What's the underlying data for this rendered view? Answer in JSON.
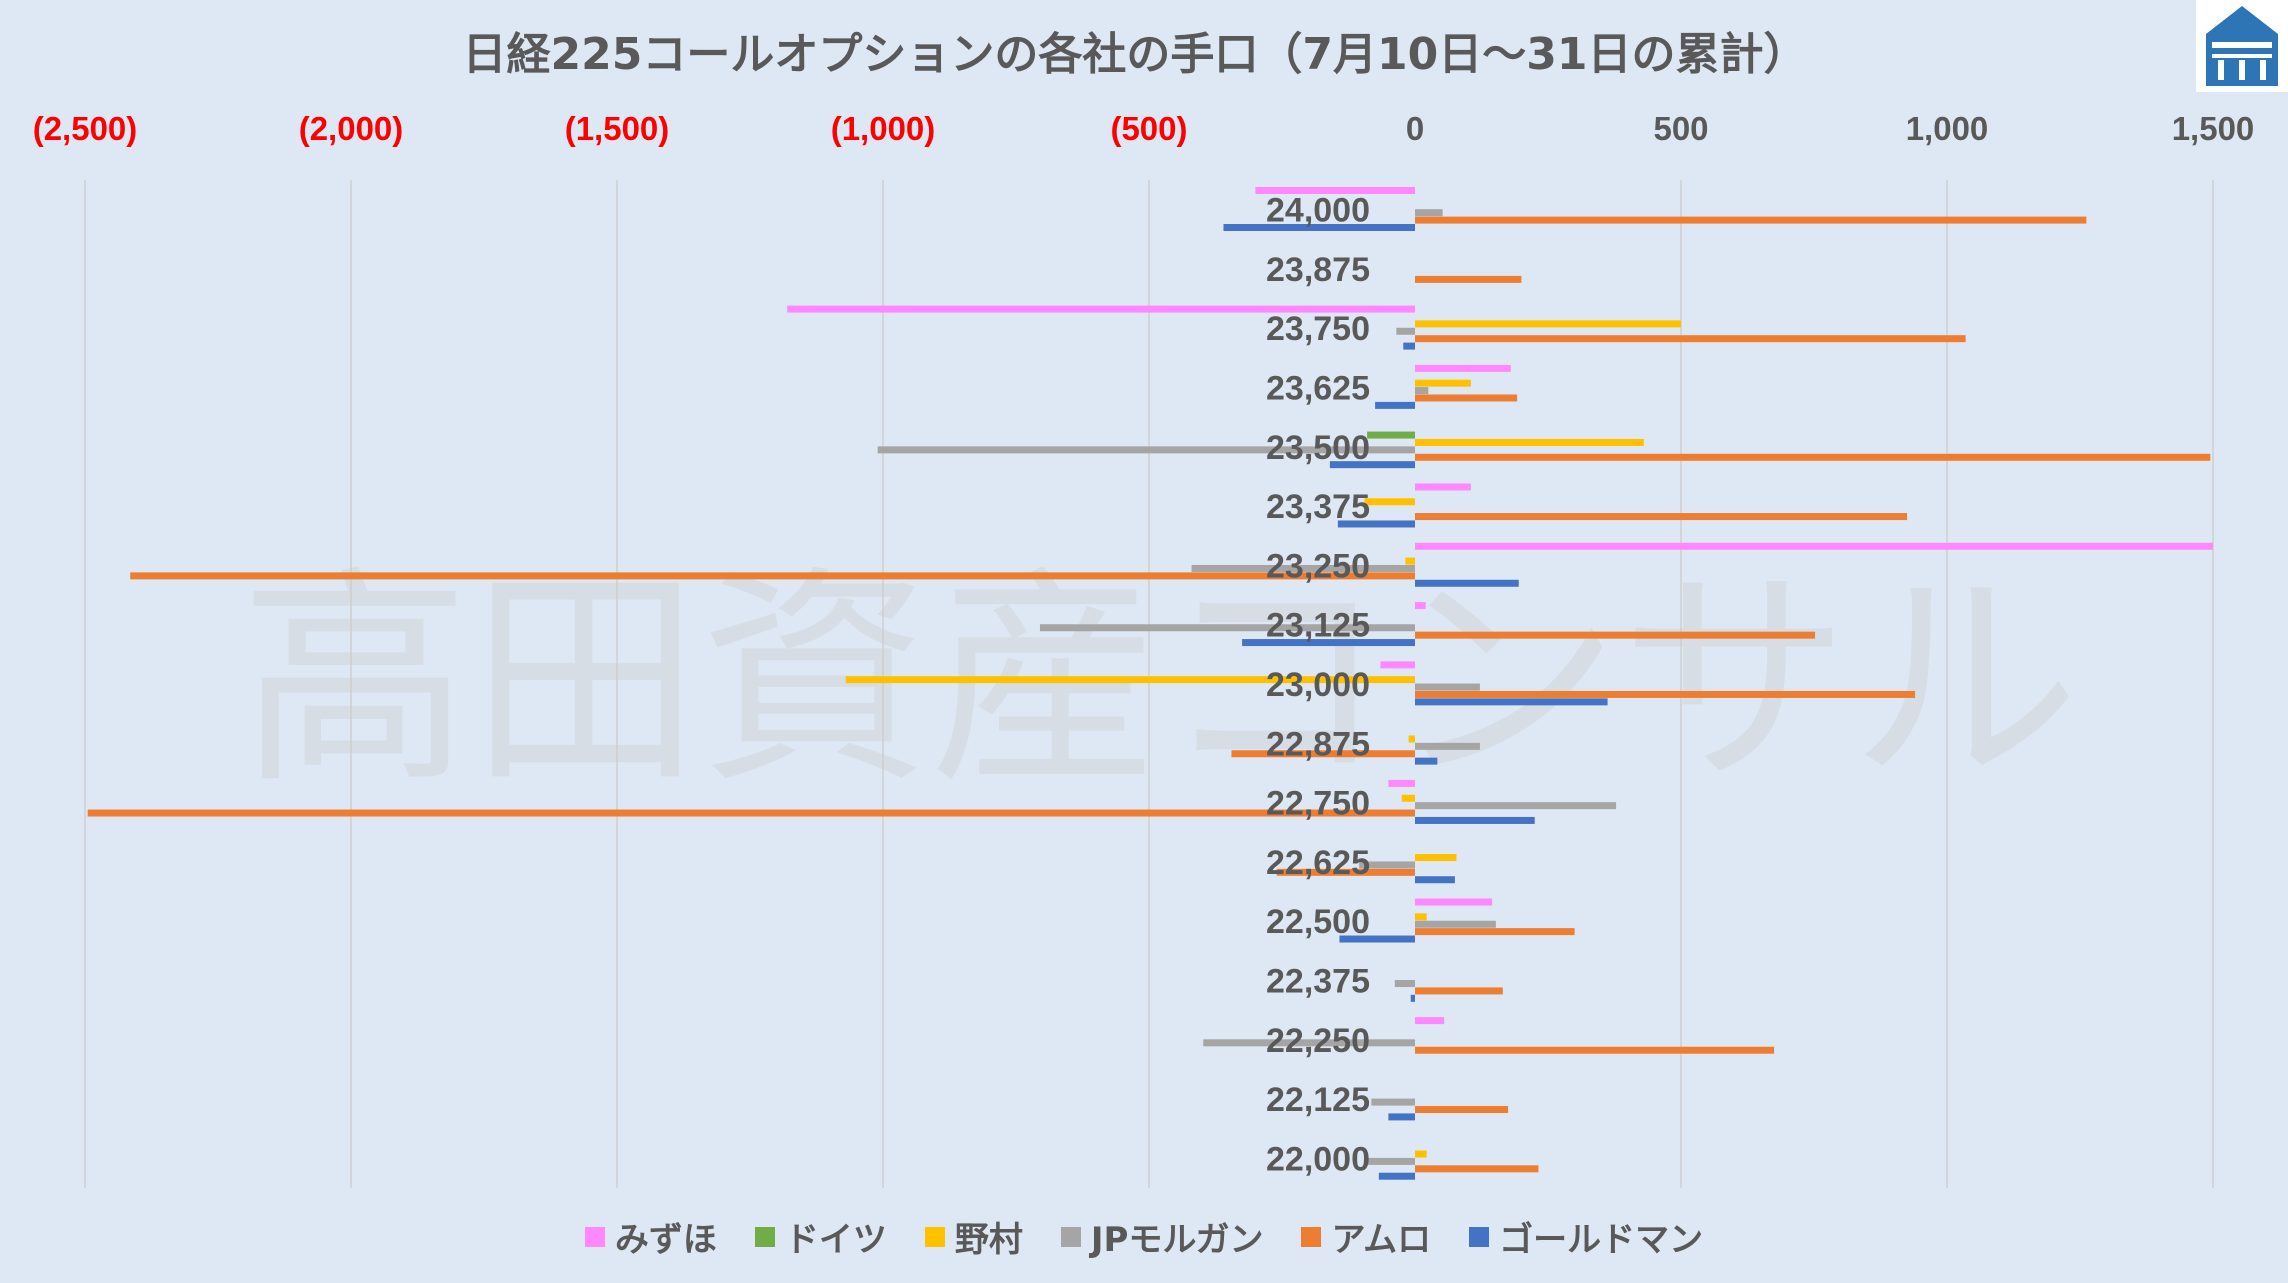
{
  "title": "日経225コールオプションの各社の手口（7月10日～31日の累計）",
  "watermark": "高田資産コンサル",
  "logo_icon": "company-logo-icon",
  "chart_data": {
    "type": "bar",
    "orientation": "horizontal",
    "title": "日経225コールオプションの各社の手口（7月10日～31日の累計）",
    "xlim": [
      -2500,
      1500
    ],
    "x_ticks": [
      -2500,
      -2000,
      -1500,
      -1000,
      -500,
      0,
      500,
      1000,
      1500
    ],
    "x_tick_labels": [
      "(2,500)",
      "(2,000)",
      "(1,500)",
      "(1,000)",
      "(500)",
      "0",
      "500",
      "1,000",
      "1,500"
    ],
    "negative_tick_color": "#ff0000",
    "positive_tick_color": "#595959",
    "categories": [
      "24,000",
      "23,875",
      "23,750",
      "23,625",
      "23,500",
      "23,375",
      "23,250",
      "23,125",
      "23,000",
      "22,875",
      "22,750",
      "22,625",
      "22,500",
      "22,375",
      "22,250",
      "22,125",
      "22,000"
    ],
    "series": [
      {
        "name": "みずほ",
        "color": "#ff88ff",
        "values": [
          -300,
          0,
          -1180,
          180,
          0,
          105,
          1500,
          20,
          -65,
          0,
          -50,
          0,
          145,
          0,
          55,
          0,
          0
        ]
      },
      {
        "name": "ドイツ",
        "color": "#70ad47",
        "values": [
          0,
          0,
          0,
          0,
          -90,
          0,
          0,
          0,
          0,
          0,
          0,
          0,
          0,
          0,
          0,
          0,
          0
        ]
      },
      {
        "name": "野村",
        "color": "#ffc000",
        "values": [
          0,
          0,
          500,
          105,
          430,
          -95,
          -18,
          0,
          -1070,
          -12,
          -25,
          78,
          22,
          0,
          0,
          0,
          22
        ]
      },
      {
        "name": "JPモルガン",
        "color": "#a5a5a5",
        "values": [
          52,
          0,
          -35,
          25,
          -1010,
          0,
          -420,
          -705,
          122,
          122,
          378,
          -105,
          152,
          -38,
          -398,
          -82,
          -92
        ]
      },
      {
        "name": "アムロ",
        "color": "#ed7d31",
        "values": [
          1262,
          200,
          1035,
          192,
          1495,
          925,
          -2415,
          752,
          940,
          -345,
          -2495,
          -260,
          300,
          165,
          675,
          175,
          232
        ]
      },
      {
        "name": "ゴールドマン",
        "color": "#4472c4",
        "values": [
          -360,
          0,
          -22,
          -75,
          -160,
          -145,
          195,
          -325,
          362,
          42,
          225,
          75,
          -142,
          -8,
          0,
          -50,
          -68
        ]
      }
    ]
  }
}
